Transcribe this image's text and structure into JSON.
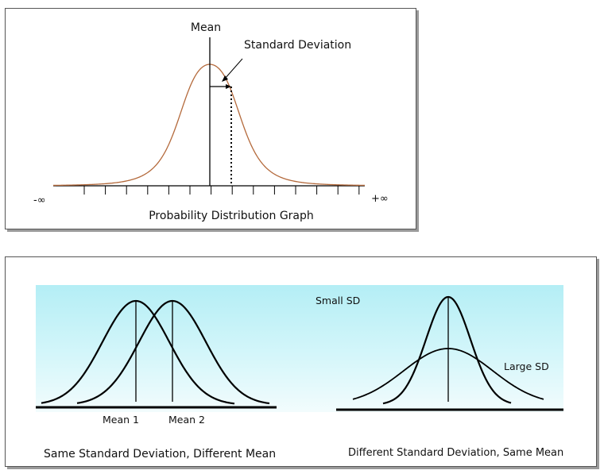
{
  "top_panel": {
    "mean_label": "Mean",
    "sd_label": "Standard Deviation",
    "neg_inf_label": "-∞",
    "pos_inf_label": "+∞",
    "caption": "Probability Distribution Graph",
    "curve_color": "#b46a3c"
  },
  "bottom_panel": {
    "background_color": "#d4f6fa",
    "left": {
      "mean1_label": "Mean 1",
      "mean2_label": "Mean 2",
      "caption": "Same Standard Deviation, Different Mean"
    },
    "right": {
      "small_sd_label": "Small SD",
      "large_sd_label": "Large SD",
      "caption": "Different Standard Deviation,  Same Mean"
    }
  }
}
